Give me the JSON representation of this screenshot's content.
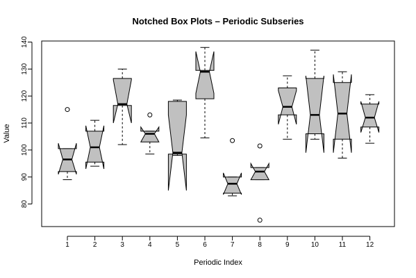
{
  "chart_data": {
    "type": "boxplot",
    "variant": "notched",
    "title": "Notched Box Plots – Periodic Subseries",
    "xlabel": "Periodic Index",
    "ylabel": "Value",
    "ylim": [
      70,
      140
    ],
    "yticks": [
      80,
      90,
      100,
      110,
      120,
      130,
      140
    ],
    "categories": [
      "1",
      "2",
      "3",
      "4",
      "5",
      "6",
      "7",
      "8",
      "9",
      "10",
      "11",
      "12"
    ],
    "box_fill": "#c0c0c0",
    "boxes": [
      {
        "label": "1",
        "lower_whisker": 89.0,
        "q1": 92.0,
        "notch_low": 91.0,
        "median": 96.5,
        "notch_high": 102.5,
        "q3": 100.5,
        "upper_whisker": 100.5,
        "outliers": [
          115.0
        ]
      },
      {
        "label": "2",
        "lower_whisker": 94.0,
        "q1": 95.5,
        "notch_low": 93.0,
        "median": 101.0,
        "notch_high": 109.0,
        "q3": 107.0,
        "upper_whisker": 111.0,
        "outliers": []
      },
      {
        "label": "3",
        "lower_whisker": 102.0,
        "q1": 116.5,
        "notch_low": 110.0,
        "median": 117.0,
        "notch_high": 126.0,
        "q3": 126.5,
        "upper_whisker": 130.0,
        "outliers": []
      },
      {
        "label": "4",
        "lower_whisker": 98.5,
        "q1": 103.0,
        "notch_low": 103.0,
        "median": 106.0,
        "notch_high": 108.5,
        "q3": 107.0,
        "upper_whisker": 107.0,
        "outliers": [
          113.0
        ]
      },
      {
        "label": "5",
        "lower_whisker": 98.0,
        "q1": 98.5,
        "notch_low": 85.0,
        "median": 99.0,
        "notch_high": 113.0,
        "q3": 118.0,
        "upper_whisker": 118.5,
        "outliers": []
      },
      {
        "label": "6",
        "lower_whisker": 104.5,
        "q1": 119.0,
        "notch_low": 121.0,
        "median": 129.0,
        "notch_high": 136.5,
        "q3": 129.5,
        "upper_whisker": 138.0,
        "outliers": []
      },
      {
        "label": "7",
        "lower_whisker": 83.0,
        "q1": 84.0,
        "notch_low": 83.5,
        "median": 87.5,
        "notch_high": 91.5,
        "q3": 90.0,
        "upper_whisker": 90.0,
        "outliers": [
          103.5
        ]
      },
      {
        "label": "8",
        "lower_whisker": 89.0,
        "q1": 89.0,
        "notch_low": 89.0,
        "median": 92.0,
        "notch_high": 95.0,
        "q3": 93.5,
        "upper_whisker": 93.5,
        "outliers": [
          101.5,
          74.0
        ]
      },
      {
        "label": "9",
        "lower_whisker": 104.0,
        "q1": 113.0,
        "notch_low": 109.5,
        "median": 116.0,
        "notch_high": 122.0,
        "q3": 123.0,
        "upper_whisker": 127.5,
        "outliers": []
      },
      {
        "label": "10",
        "lower_whisker": 104.0,
        "q1": 106.0,
        "notch_low": 99.0,
        "median": 113.0,
        "notch_high": 127.5,
        "q3": 126.5,
        "upper_whisker": 137.0,
        "outliers": []
      },
      {
        "label": "11",
        "lower_whisker": 97.0,
        "q1": 104.0,
        "notch_low": 99.0,
        "median": 113.5,
        "notch_high": 128.0,
        "q3": 125.0,
        "upper_whisker": 129.0,
        "outliers": []
      },
      {
        "label": "12",
        "lower_whisker": 102.5,
        "q1": 108.5,
        "notch_low": 106.5,
        "median": 112.0,
        "notch_high": 118.0,
        "q3": 117.0,
        "upper_whisker": 120.5,
        "outliers": []
      }
    ]
  }
}
